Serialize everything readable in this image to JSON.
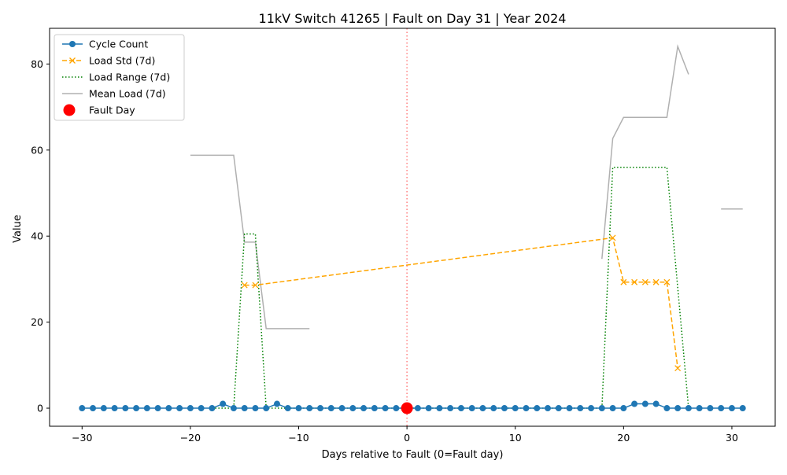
{
  "chart_data": {
    "type": "line",
    "title": "11kV Switch 41265 | Fault on Day 31 | Year 2024",
    "xlabel": "Days relative to Fault (0=Fault day)",
    "ylabel": "Value",
    "xlim": [
      -33,
      34
    ],
    "ylim": [
      -4.2,
      88.3
    ],
    "xticks": [
      -30,
      -20,
      -10,
      0,
      10,
      20,
      30
    ],
    "yticks": [
      0,
      20,
      40,
      60,
      80
    ],
    "legend_position": "upper-left",
    "grid": false,
    "fault_marker_x": 0,
    "series": [
      {
        "name": "Cycle Count",
        "color": "#1f77b4",
        "style": "solid",
        "marker": "circle",
        "points": [
          [
            -30,
            0
          ],
          [
            -29,
            0
          ],
          [
            -28,
            0
          ],
          [
            -27,
            0
          ],
          [
            -26,
            0
          ],
          [
            -25,
            0
          ],
          [
            -24,
            0
          ],
          [
            -23,
            0
          ],
          [
            -22,
            0
          ],
          [
            -21,
            0
          ],
          [
            -20,
            0
          ],
          [
            -19,
            0
          ],
          [
            -18,
            0
          ],
          [
            -17,
            1
          ],
          [
            -16,
            0
          ],
          [
            -15,
            0
          ],
          [
            -14,
            0
          ],
          [
            -13,
            0
          ],
          [
            -12,
            1
          ],
          [
            -11,
            0
          ],
          [
            -10,
            0
          ],
          [
            -9,
            0
          ],
          [
            -8,
            0
          ],
          [
            -7,
            0
          ],
          [
            -6,
            0
          ],
          [
            -5,
            0
          ],
          [
            -4,
            0
          ],
          [
            -3,
            0
          ],
          [
            -2,
            0
          ],
          [
            -1,
            0
          ],
          [
            0,
            0
          ],
          [
            1,
            0
          ],
          [
            2,
            0
          ],
          [
            3,
            0
          ],
          [
            4,
            0
          ],
          [
            5,
            0
          ],
          [
            6,
            0
          ],
          [
            7,
            0
          ],
          [
            8,
            0
          ],
          [
            9,
            0
          ],
          [
            10,
            0
          ],
          [
            11,
            0
          ],
          [
            12,
            0
          ],
          [
            13,
            0
          ],
          [
            14,
            0
          ],
          [
            15,
            0
          ],
          [
            16,
            0
          ],
          [
            17,
            0
          ],
          [
            18,
            0
          ],
          [
            19,
            0
          ],
          [
            20,
            0
          ],
          [
            21,
            1
          ],
          [
            22,
            1
          ],
          [
            23,
            1
          ],
          [
            24,
            0
          ],
          [
            25,
            0
          ],
          [
            26,
            0
          ],
          [
            27,
            0
          ],
          [
            28,
            0
          ],
          [
            29,
            0
          ],
          [
            30,
            0
          ],
          [
            31,
            0
          ]
        ]
      },
      {
        "name": "Load Std (7d)",
        "color": "#ffa500",
        "style": "dashed",
        "marker": "x",
        "points": [
          [
            -15,
            28.6
          ],
          [
            -14,
            28.6
          ],
          [
            19,
            39.6
          ],
          [
            20,
            29.3
          ],
          [
            21,
            29.3
          ],
          [
            22,
            29.3
          ],
          [
            23,
            29.3
          ],
          [
            24,
            29.3
          ],
          [
            25,
            9.3
          ]
        ]
      },
      {
        "name": "Load Range (7d)",
        "color": "#008000",
        "style": "dotted",
        "marker": "none",
        "points": [
          [
            -18,
            0
          ],
          [
            -17,
            0
          ],
          [
            -16,
            0
          ],
          [
            -15,
            40.5
          ],
          [
            -14,
            40.5
          ],
          [
            -13,
            0
          ],
          [
            -12,
            0
          ],
          [
            -11,
            0
          ],
          [
            -10,
            0
          ],
          [
            -9,
            0
          ],
          [
            -8,
            0
          ],
          [
            -7,
            0
          ],
          [
            -6,
            0
          ],
          [
            -5,
            0
          ],
          [
            -4,
            0
          ],
          [
            -3,
            0
          ],
          [
            -2,
            0
          ],
          [
            -1,
            0
          ],
          [
            0,
            0
          ],
          [
            1,
            0
          ],
          [
            2,
            0
          ],
          [
            3,
            0
          ],
          [
            4,
            0
          ],
          [
            5,
            0
          ],
          [
            6,
            0
          ],
          [
            7,
            0
          ],
          [
            8,
            0
          ],
          [
            9,
            0
          ],
          [
            10,
            0
          ],
          [
            11,
            0
          ],
          [
            12,
            0
          ],
          [
            13,
            0
          ],
          [
            14,
            0
          ],
          [
            15,
            0
          ],
          [
            16,
            0
          ],
          [
            17,
            0
          ],
          [
            18,
            0
          ],
          [
            19,
            56
          ],
          [
            20,
            56
          ],
          [
            21,
            56
          ],
          [
            22,
            56
          ],
          [
            23,
            56
          ],
          [
            24,
            56
          ],
          [
            25,
            28
          ],
          [
            26,
            0
          ]
        ]
      },
      {
        "name": "Mean Load (7d)",
        "color": "#b0b0b0",
        "style": "solid",
        "marker": "none",
        "segments": [
          [
            [
              -20,
              58.8
            ],
            [
              -19,
              58.8
            ],
            [
              -18,
              58.8
            ],
            [
              -17,
              58.8
            ],
            [
              -16,
              58.8
            ],
            [
              -15,
              38.6
            ],
            [
              -14,
              38.6
            ],
            [
              -13,
              18.5
            ],
            [
              -12,
              18.5
            ],
            [
              -11,
              18.5
            ],
            [
              -10,
              18.5
            ],
            [
              -9,
              18.5
            ]
          ],
          [
            [
              18,
              34.7
            ],
            [
              19,
              62.7
            ],
            [
              20,
              67.6
            ],
            [
              21,
              67.6
            ],
            [
              22,
              67.6
            ],
            [
              23,
              67.6
            ],
            [
              24,
              67.6
            ],
            [
              25,
              84.1
            ],
            [
              26,
              77.6
            ]
          ],
          [
            [
              29,
              46.3
            ],
            [
              30,
              46.3
            ],
            [
              31,
              46.3
            ]
          ]
        ]
      },
      {
        "name": "Fault Day",
        "color": "#ff0000",
        "style": "none",
        "marker": "big-circle",
        "points": [
          [
            0,
            0
          ]
        ]
      }
    ]
  }
}
